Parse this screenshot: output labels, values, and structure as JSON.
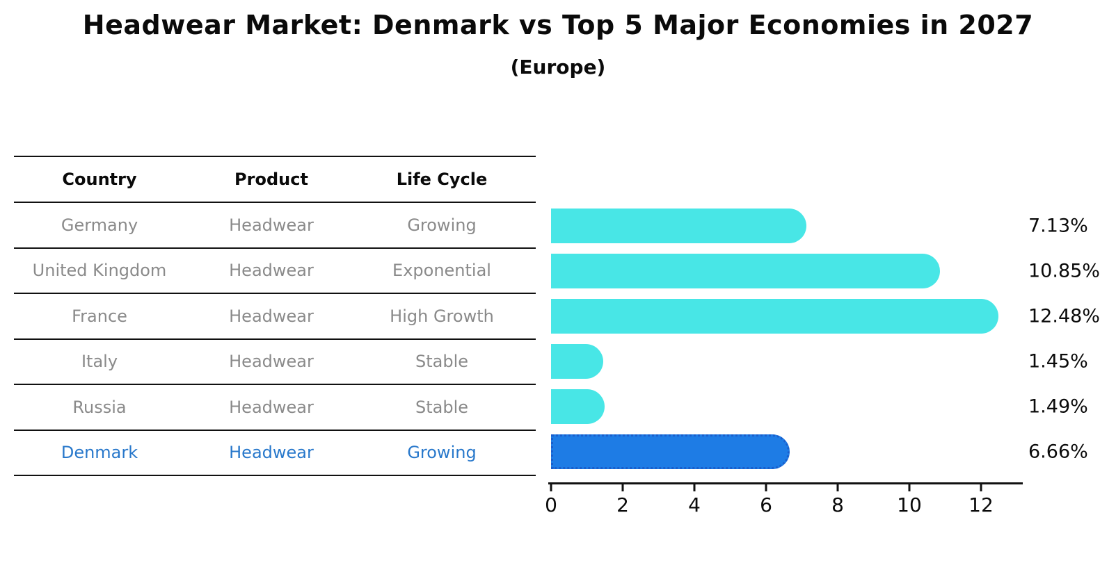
{
  "title": "Headwear Market: Denmark vs Top 5 Major Economies in 2027",
  "subtitle": "(Europe)",
  "table": {
    "headers": [
      "Country",
      "Product",
      "Life Cycle"
    ],
    "rows": [
      {
        "country": "Germany",
        "product": "Headwear",
        "life_cycle": "Growing",
        "highlight": false
      },
      {
        "country": "United Kingdom",
        "product": "Headwear",
        "life_cycle": "Exponential",
        "highlight": false
      },
      {
        "country": "France",
        "product": "Headwear",
        "life_cycle": "High Growth",
        "highlight": false
      },
      {
        "country": "Italy",
        "product": "Headwear",
        "life_cycle": "Stable",
        "highlight": false
      },
      {
        "country": "Russia",
        "product": "Headwear",
        "life_cycle": "Stable",
        "highlight": false
      },
      {
        "country": "Denmark",
        "product": "Headwear",
        "life_cycle": "Growing",
        "highlight": true
      }
    ]
  },
  "chart_data": {
    "type": "bar",
    "orientation": "horizontal",
    "title": "Headwear Market: Denmark vs Top 5 Major Economies in 2027",
    "subtitle": "(Europe)",
    "categories": [
      "Germany",
      "United Kingdom",
      "France",
      "Italy",
      "Russia",
      "Denmark"
    ],
    "values": [
      7.13,
      10.85,
      12.48,
      1.45,
      1.49,
      6.66
    ],
    "value_labels": [
      "7.13%",
      "10.85%",
      "12.48%",
      "1.45%",
      "1.49%",
      "6.66%"
    ],
    "highlight_index": 5,
    "xticks": [
      0,
      2,
      4,
      6,
      8,
      10,
      12
    ],
    "xlim": [
      0,
      13.2
    ],
    "grid": false,
    "legend": false
  },
  "colors": {
    "bar": "#48E6E6",
    "highlight_bar": "#1E7CE5",
    "highlight_border": "#1A5ECC",
    "highlight_text": "#2878CB",
    "row_text": "#8A8A8A",
    "axis": "#111111"
  }
}
